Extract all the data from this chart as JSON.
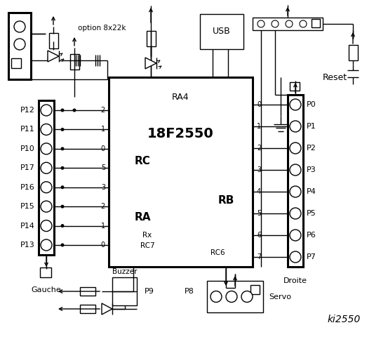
{
  "bg_color": "#ffffff",
  "line_color": "#000000",
  "title": "ki2550",
  "chip_label": "18F2550",
  "rc_label": "RC",
  "ra_label": "RA",
  "rb_label": "RB",
  "ra4_label": "RA4",
  "rc_pin_nums": [
    "2",
    "1",
    "0",
    "5",
    "3",
    "2",
    "1",
    "0"
  ],
  "rc_pin_names": [
    "P12",
    "P11",
    "P10",
    "P17",
    "P16",
    "P15",
    "P14",
    "P13"
  ],
  "rb_pin_nums": [
    "0",
    "1",
    "2",
    "3",
    "4",
    "5",
    "6",
    "7"
  ],
  "rb_pin_names": [
    "P0",
    "P1",
    "P2",
    "P3",
    "P4",
    "P5",
    "P6",
    "P7"
  ],
  "option_label": "option 8x22k",
  "gauche_label": "Gauche",
  "droite_label": "Droite",
  "buzzer_label": "Buzzer",
  "servo_label": "Servo",
  "p9_label": "P9",
  "p8_label": "P8",
  "reset_label": "Reset",
  "usb_label": "USB",
  "rx_label": "Rx",
  "rc7_label": "RC7",
  "rc6_label": "RC6"
}
